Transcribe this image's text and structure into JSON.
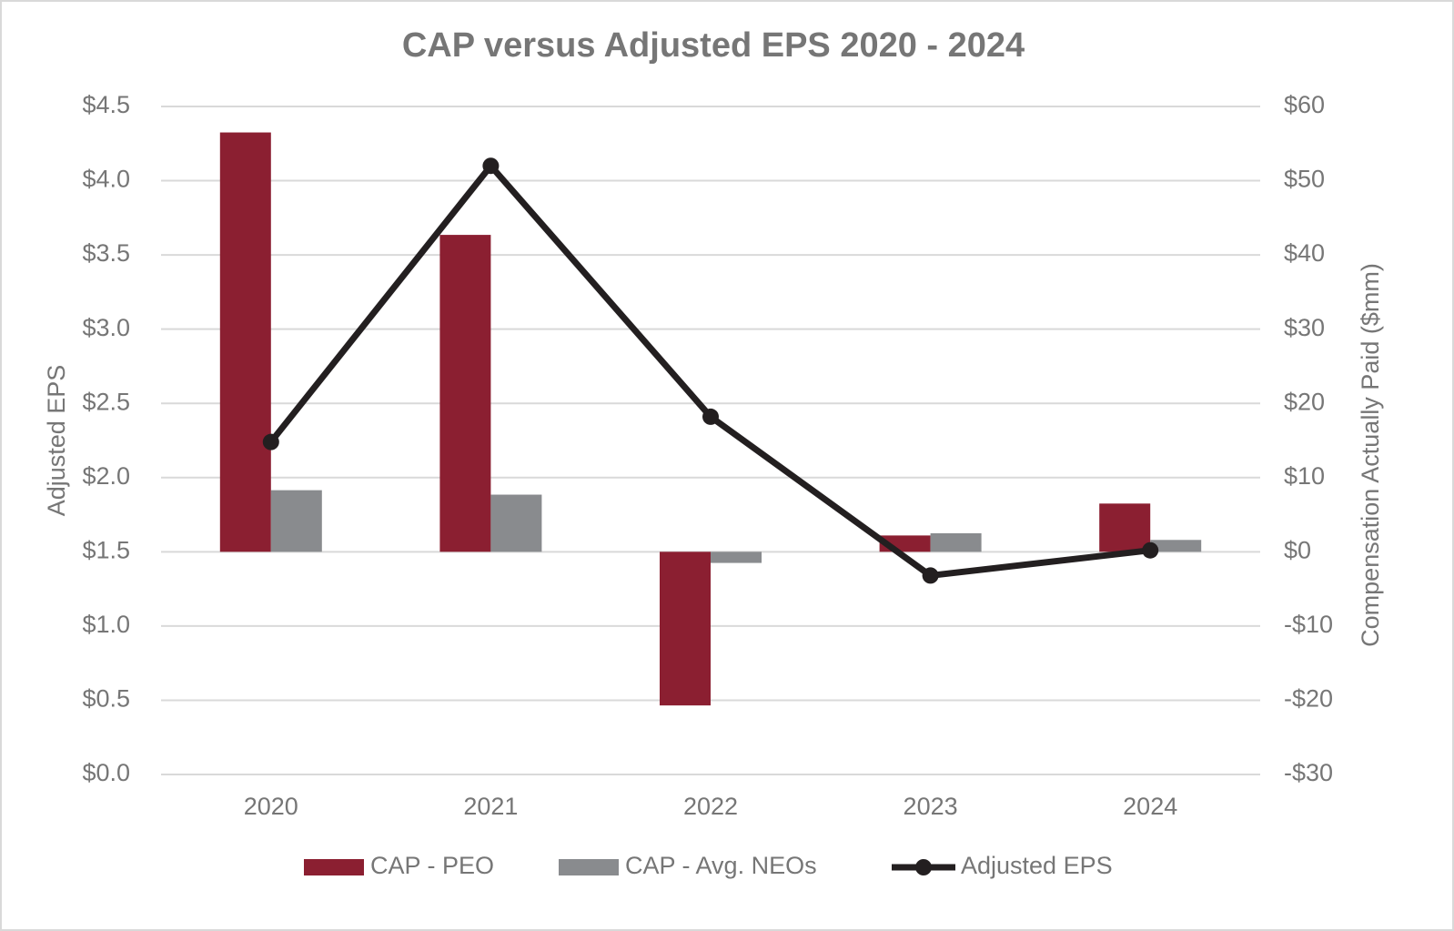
{
  "chart_data": {
    "type": "bar_line",
    "title": "CAP versus Adjusted EPS 2020 - 2024",
    "y_label": "Adjusted EPS",
    "y2_label": "Compensation Actually Paid ($mm)",
    "categories": [
      "2020",
      "2021",
      "2022",
      "2023",
      "2024"
    ],
    "series": [
      {
        "name": "CAP - PEO",
        "type": "bar",
        "axis": "y2",
        "color": "#8b1f31",
        "values": [
          56.5,
          42.7,
          -20.7,
          2.2,
          6.5
        ]
      },
      {
        "name": "CAP - Avg. NEOs",
        "type": "bar",
        "axis": "y2",
        "color": "#898b8e",
        "values": [
          8.3,
          7.7,
          -1.5,
          2.5,
          1.6
        ]
      },
      {
        "name": "Adjusted EPS",
        "type": "line",
        "axis": "y",
        "color": "#231f20",
        "values": [
          2.24,
          4.1,
          2.41,
          1.34,
          1.51
        ]
      }
    ],
    "ylim": [
      0,
      4.5
    ],
    "yticks": [
      {
        "value": 0,
        "label": "$0.0"
      },
      {
        "value": 0.5,
        "label": "$0.5"
      },
      {
        "value": 1,
        "label": "$1.0"
      },
      {
        "value": 1.5,
        "label": "$1.5"
      },
      {
        "value": 2,
        "label": "$2.0"
      },
      {
        "value": 2.5,
        "label": "$2.5"
      },
      {
        "value": 3,
        "label": "$3.0"
      },
      {
        "value": 3.5,
        "label": "$3.5"
      },
      {
        "value": 4,
        "label": "$4.0"
      },
      {
        "value": 4.5,
        "label": "$4.5"
      }
    ],
    "y2lim": [
      -30,
      60
    ],
    "y2ticks": [
      {
        "value": -30,
        "label": "-$30"
      },
      {
        "value": -20,
        "label": "-$20"
      },
      {
        "value": -10,
        "label": "-$10"
      },
      {
        "value": 0,
        "label": "$0"
      },
      {
        "value": 10,
        "label": "$10"
      },
      {
        "value": 20,
        "label": "$20"
      },
      {
        "value": 30,
        "label": "$30"
      },
      {
        "value": 40,
        "label": "$40"
      },
      {
        "value": 50,
        "label": "$50"
      },
      {
        "value": 60,
        "label": "$60"
      }
    ],
    "grid": true,
    "legend": "bottom"
  }
}
